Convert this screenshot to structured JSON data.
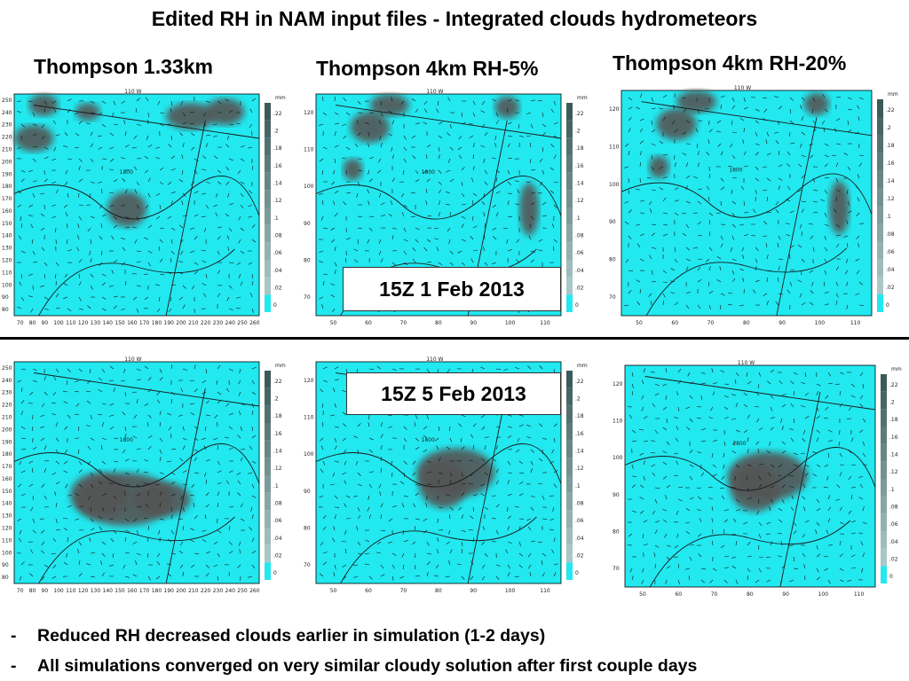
{
  "title": "Edited RH in NAM input files - Integrated clouds hydrometeors",
  "columns": [
    "Thompson 1.33km",
    "Thompson 4km RH-5%",
    "Thompson 4km RH-20%"
  ],
  "dates": [
    "15Z 1 Feb 2013",
    "15Z 5 Feb 2013"
  ],
  "bullets": [
    "Reduced RH decreased clouds earlier in simulation (1-2 days)",
    "All simulations converged on very similar cloudy solution after first couple days"
  ],
  "colorbar": {
    "unit": "mm",
    "labels": [
      ".22",
      ".2",
      ".18",
      ".16",
      ".14",
      ".12",
      ".1",
      ".08",
      ".06",
      ".04",
      ".02",
      "0"
    ]
  },
  "map_labels": {
    "longitude": "110 W",
    "station": "1800"
  },
  "axes": {
    "fine_x": [
      "70",
      "80",
      "90",
      "100",
      "110",
      "120",
      "130",
      "140",
      "150",
      "160",
      "170",
      "180",
      "190",
      "200",
      "210",
      "220",
      "230",
      "240",
      "250",
      "260"
    ],
    "fine_y": [
      "250",
      "240",
      "230",
      "220",
      "210",
      "200",
      "190",
      "180",
      "170",
      "160",
      "150",
      "140",
      "130",
      "120",
      "110",
      "100",
      "90",
      "80"
    ],
    "coarse_x": [
      "50",
      "60",
      "70",
      "80",
      "90",
      "100",
      "110"
    ],
    "coarse_y": [
      "120",
      "110",
      "100",
      "90",
      "80",
      "70"
    ]
  },
  "colors": {
    "field": "#22e8f0",
    "cloud": "#555555",
    "map_line": "#1a1a1a"
  }
}
